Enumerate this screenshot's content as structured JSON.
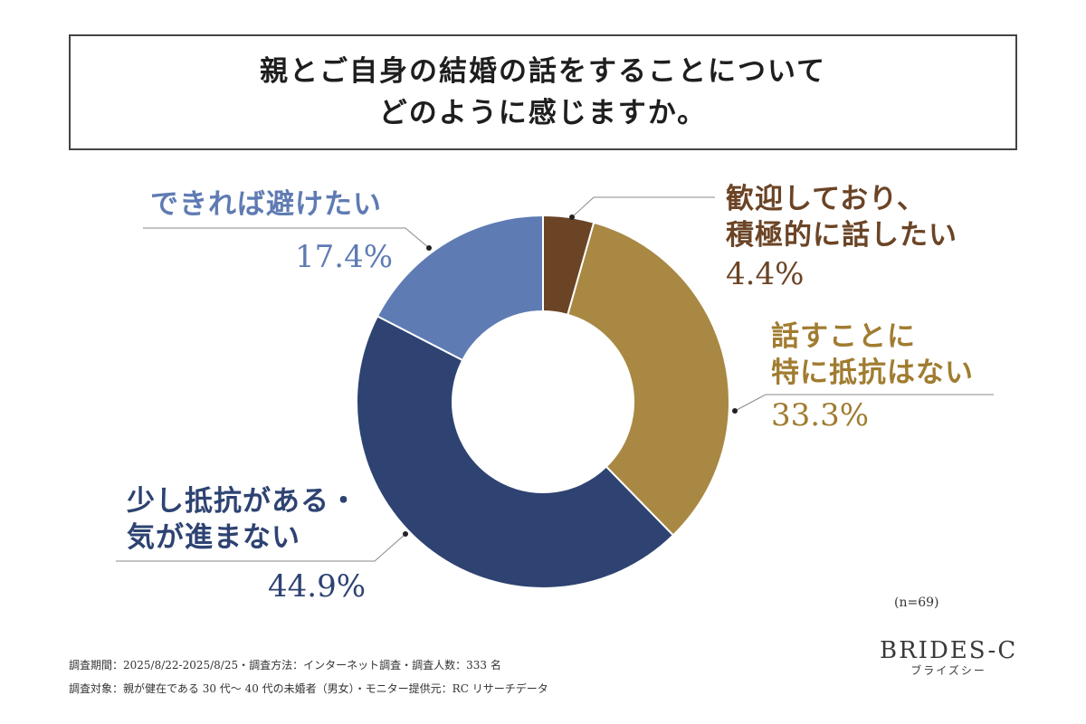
{
  "title": {
    "line1": "親とご自身の結婚の話をすることについて",
    "line2": "どのように感じますか。"
  },
  "chart_data": {
    "type": "pie",
    "donut": true,
    "slices": [
      {
        "label": "歓迎しており、積極的に話したい",
        "label_line1": "歓迎しており、",
        "label_line2": "積極的に話したい",
        "value": 4.4,
        "display": "4.4%",
        "color": "#6b4426"
      },
      {
        "label": "話すことに特に抵抗はない",
        "label_line1": "話すことに",
        "label_line2": "特に抵抗はない",
        "value": 33.3,
        "display": "33.3%",
        "color": "#a88843"
      },
      {
        "label": "少し抵抗がある・気が進まない",
        "label_line1": "少し抵抗がある・",
        "label_line2": "気が進まない",
        "value": 44.9,
        "display": "44.9%",
        "color": "#2e4372"
      },
      {
        "label": "できれば避けたい",
        "label_line1": "できれば避けたい",
        "label_line2": "",
        "value": 17.4,
        "display": "17.4%",
        "color": "#5f7bb3"
      }
    ],
    "label_colors": [
      "#6b4426",
      "#a07c30",
      "#2e4372",
      "#5f7bb3"
    ],
    "sample": "(n=69)"
  },
  "footer": {
    "line1": "調査期間：2025/8/22-2025/8/25・調査方法：インターネット調査・調査人数：333 名",
    "line2": "調査対象：親が健在である 30 代〜 40 代の未婚者（男女）・モニター提供元：RC リサーチデータ"
  },
  "brand": {
    "name": "BRIDES-C",
    "kana": "ブライズシー"
  }
}
